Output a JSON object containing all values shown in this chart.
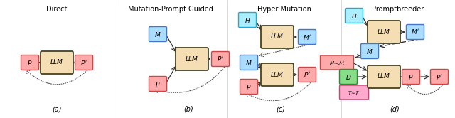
{
  "llm_box_color": "#f5deb3",
  "llm_box_edge": "#444422",
  "red_box_color": "#ffaaaa",
  "red_box_edge": "#cc4444",
  "blue_box_color": "#aaddff",
  "blue_box_edge": "#4477cc",
  "cyan_box_color": "#aaeeff",
  "cyan_box_edge": "#22aacc",
  "green_box_color": "#88dd88",
  "green_box_edge": "#338833",
  "pink_box_color": "#ffaacc",
  "pink_box_edge": "#cc4477",
  "titles": [
    "Direct",
    "Mutation-Prompt Guided",
    "Hyper Mutation",
    "Promptbreeder"
  ],
  "subtitles": [
    "(a)",
    "(b)",
    "(c)",
    "(d)"
  ]
}
